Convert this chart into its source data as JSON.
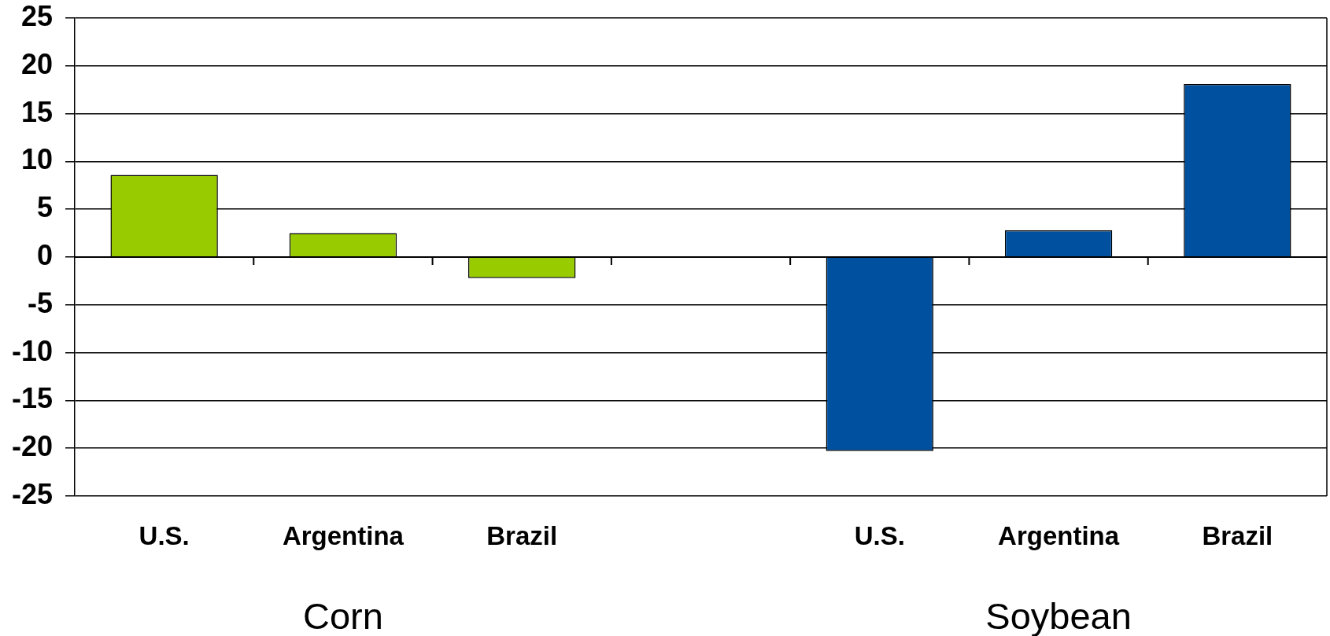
{
  "chart_data": {
    "type": "bar",
    "categories": [
      "U.S.",
      "Argentina",
      "Brazil",
      null,
      "U.S.",
      "Argentina",
      "Brazil"
    ],
    "series": [
      {
        "color": "#99cc00",
        "values": [
          8.6,
          2.5,
          -2.2,
          null,
          null,
          null,
          null
        ]
      },
      {
        "color": "#0050a0",
        "values": [
          null,
          null,
          null,
          null,
          -20.3,
          2.8,
          18.1
        ]
      }
    ],
    "annotations": [
      "Corn",
      "Soybean"
    ],
    "ylim": [
      -25,
      25
    ],
    "yticks": [
      -25,
      -20,
      -15,
      -10,
      -5,
      0,
      5,
      10,
      15,
      20,
      25
    ],
    "grid": "y",
    "legend": false
  }
}
